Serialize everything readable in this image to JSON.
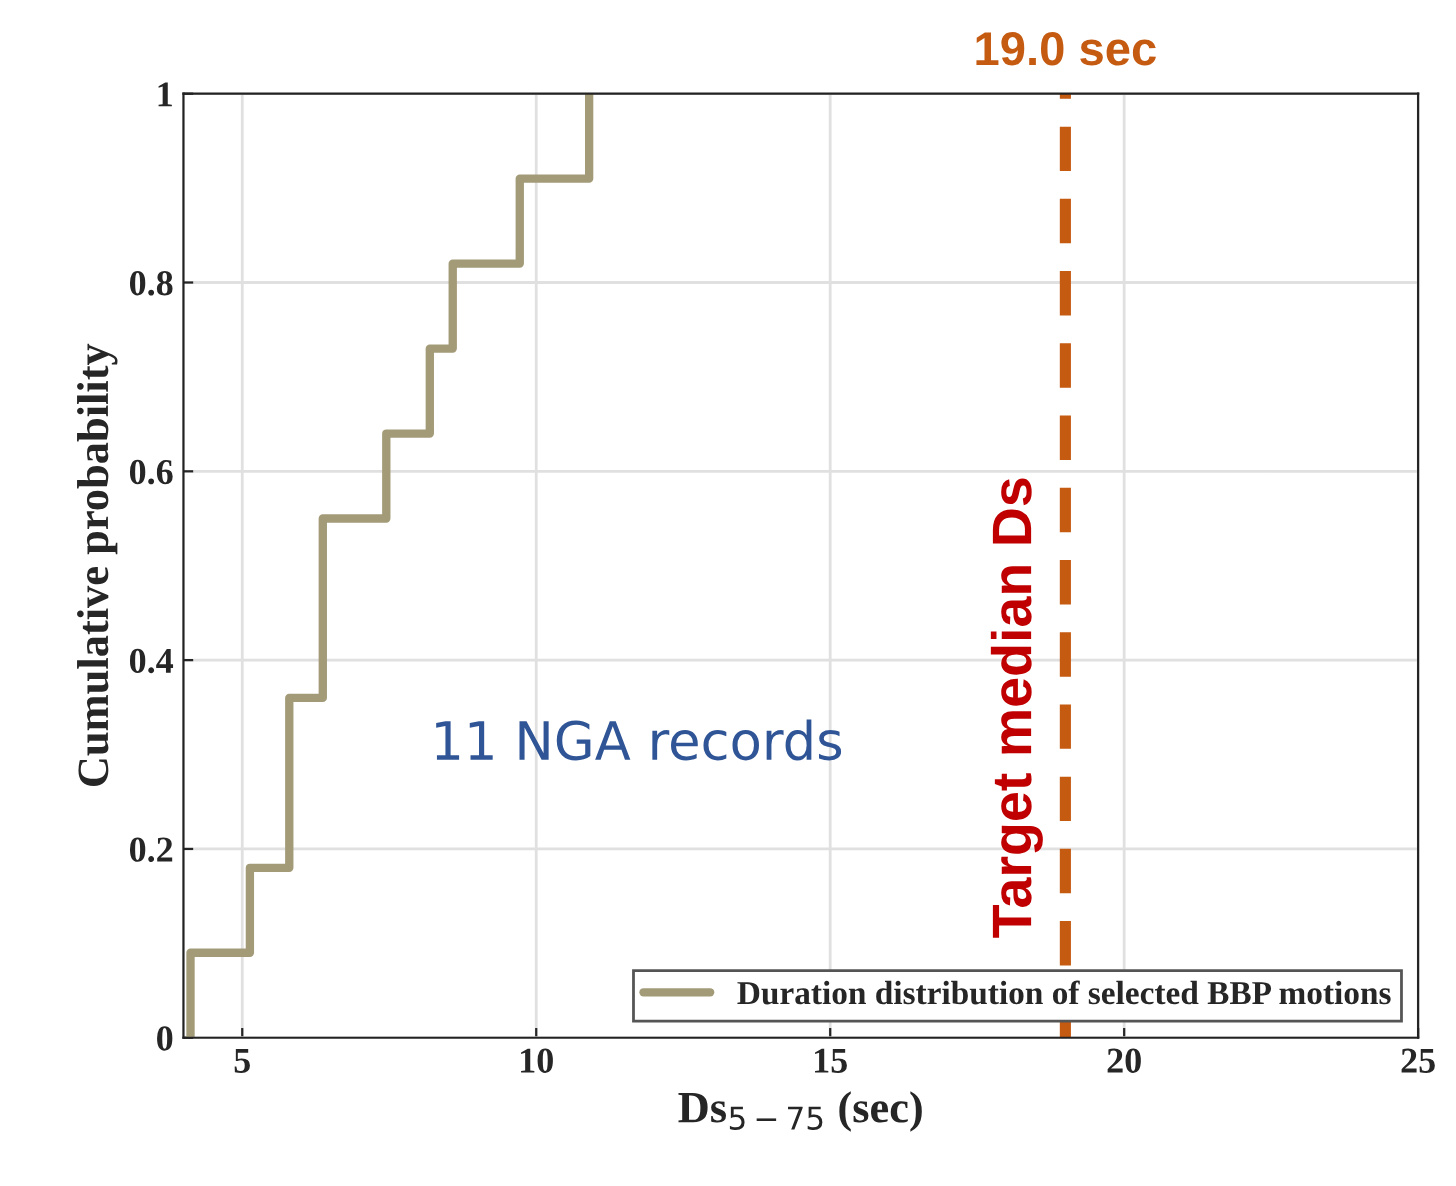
{
  "chart_data": {
    "type": "step",
    "xlabel": "Ds$_{5−75}$ (sec)",
    "ylabel": "Cumulative probability",
    "series": [
      {
        "name": "Duration distribution of selected BBP motions",
        "color": "#a39b78",
        "x": [
          4.12,
          4.12,
          5.13,
          5.8,
          6.37,
          7.45,
          8.19,
          8.58,
          9.72,
          10.9
        ],
        "values": [
          0,
          0.09,
          0.18,
          0.36,
          0.55,
          0.64,
          0.73,
          0.82,
          0.91,
          1
        ]
      }
    ],
    "ref_lines": [
      {
        "axis": "x",
        "value": 19.0,
        "label": "19.0 sec",
        "color": "#c55a11",
        "line_style": "dashed"
      }
    ],
    "annotations": [
      "Target median Ds",
      "11 NGA records"
    ],
    "xlim": [
      4,
      25
    ],
    "xticks": [
      5,
      10,
      15,
      20,
      25
    ],
    "ylim": [
      0,
      1
    ],
    "yticks": [
      0,
      0.2,
      0.4,
      0.6,
      0.8,
      1
    ],
    "grid": true,
    "legend": "bottom right"
  }
}
